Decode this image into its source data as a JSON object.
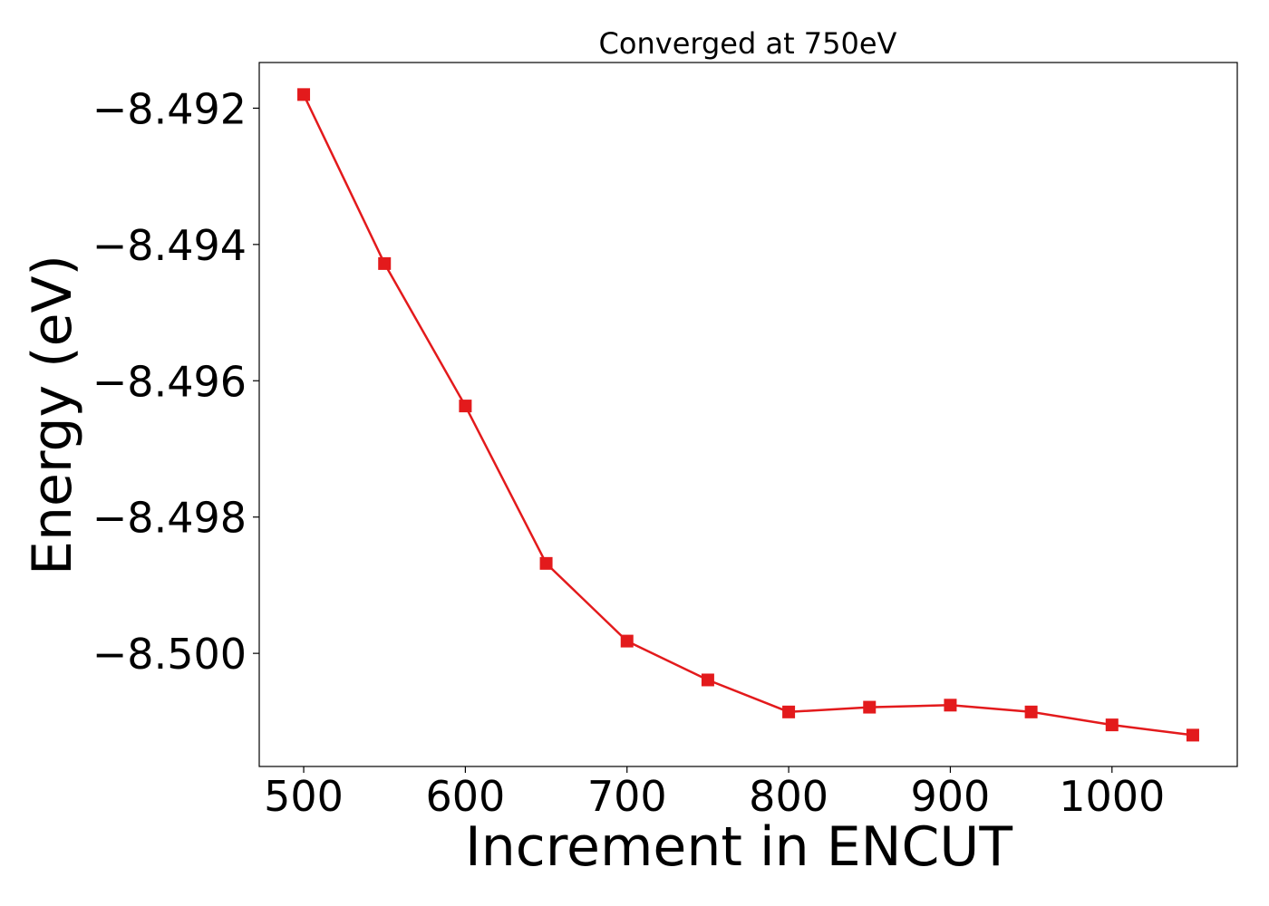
{
  "chart_data": {
    "type": "line",
    "title": "Converged at 750eV",
    "xlabel": "Increment in ENCUT",
    "ylabel": "Energy (eV)",
    "x": [
      500,
      550,
      600,
      650,
      700,
      750,
      800,
      850,
      900,
      950,
      1000,
      1050
    ],
    "series": [
      {
        "values": [
          -8.4918,
          -8.49428,
          -8.49637,
          -8.49868,
          -8.49982,
          -8.50039,
          -8.50086,
          -8.50079,
          -8.50076,
          -8.50086,
          -8.50105,
          -8.5012
        ],
        "color": "#e31a1c",
        "marker": "square"
      }
    ],
    "xlim": [
      472.5,
      1077.5
    ],
    "ylim": [
      -8.50166,
      -8.49133
    ],
    "xticks": [
      500,
      600,
      700,
      800,
      900,
      1000
    ],
    "xtick_labels": [
      "500",
      "600",
      "700",
      "800",
      "900",
      "1000"
    ],
    "yticks": [
      -8.492,
      -8.494,
      -8.496,
      -8.498,
      -8.5
    ],
    "ytick_labels": [
      "−8.492",
      "−8.494",
      "−8.496",
      "−8.498",
      "−8.500"
    ],
    "grid": false,
    "legend": "none"
  }
}
